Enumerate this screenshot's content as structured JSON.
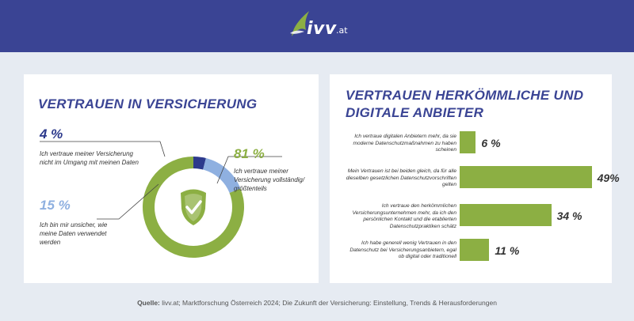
{
  "brand": {
    "name": "ivv",
    "domain": ".at"
  },
  "left_chart": {
    "title": "VERTRAUEN IN VERSICHERUNG",
    "center_icon": "shield-check-icon",
    "colors": {
      "navy": "#2d3a8c",
      "light_blue": "#8fb0e0",
      "green": "#8caf43"
    }
  },
  "right_chart": {
    "title": "VERTRAUEN HERKÖMMLICHE UND DIGITALE ANBIETER"
  },
  "chart_data": [
    {
      "type": "pie",
      "title": "VERTRAUEN IN VERSICHERUNG",
      "slices": [
        {
          "label_pct": "4 %",
          "value": 4,
          "label": "Ich vertraue meiner Versicherung nicht im Umgang mit meinen Daten",
          "color": "#2d3a8c"
        },
        {
          "label_pct": "15 %",
          "value": 15,
          "label": "Ich bin mir unsicher, wie meine Daten verwendet werden",
          "color": "#8fb0e0"
        },
        {
          "label_pct": "81 %",
          "value": 81,
          "label": "Ich vertraue meiner Versicherung vollständig/ größtenteils",
          "color": "#8caf43"
        }
      ]
    },
    {
      "type": "bar",
      "orientation": "horizontal",
      "title": "VERTRAUEN HERKÖMMLICHE UND DIGITALE ANBIETER",
      "categories": [
        "Ich vertraue digitalen Anbietern mehr, da sie moderne Datenschutzmaßnahmen zu haben scheinen",
        "Mein Vertrauen ist bei beiden gleich, da für alle dieselben gesetzlichen Datenschutzvorschriften gelten",
        "Ich vertraue den herkömmlichen Versicherungsunternehmen mehr, da ich den persönlichen Kontakt und die etablierten Datenschutzpraktiken schätz",
        "Ich habe generell wenig Vertrauen in den Datenschutz bei Versicherungsanbietern, egal ob digital oder traditionell"
      ],
      "values": [
        6,
        49,
        34,
        11
      ],
      "value_labels": [
        "6 %",
        "49%",
        "34 %",
        "11 %"
      ],
      "xlim": [
        0,
        50
      ],
      "color": "#8caf43"
    }
  ],
  "source": {
    "label": "Quelle:",
    "text": " livv.at; Marktforschung Österreich 2024; Die Zukunft der Versicherung: Einstellung, Trends & Herausforderungen"
  }
}
